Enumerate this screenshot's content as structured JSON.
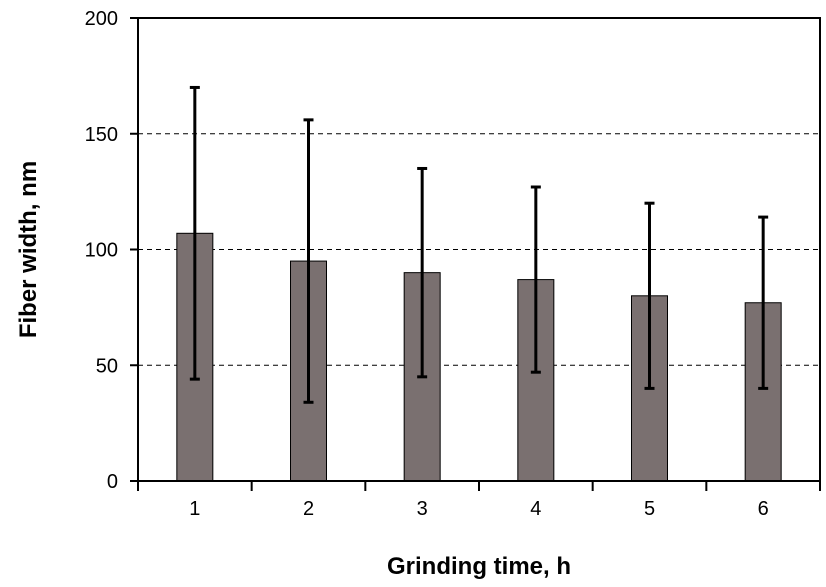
{
  "chart_data": {
    "type": "bar",
    "title": "",
    "xlabel": "Grinding time, h",
    "ylabel": "Fiber width, nm",
    "categories": [
      "1",
      "2",
      "3",
      "4",
      "5",
      "6"
    ],
    "values": [
      107,
      95,
      90,
      87,
      80,
      77
    ],
    "error_upper": [
      170,
      156,
      135,
      127,
      120,
      114
    ],
    "error_lower": [
      44,
      34,
      45,
      47,
      40,
      40
    ],
    "ylim": [
      0,
      200
    ],
    "yticks": [
      0,
      50,
      100,
      150,
      200
    ],
    "ytick_labels": [
      "0",
      "50",
      "100",
      "150",
      "200"
    ],
    "grid": true,
    "legend": "none",
    "colors": {
      "bar_fill": "#7a7070",
      "bar_stroke": "#000000",
      "error_bar": "#000000",
      "grid": "#000000"
    }
  }
}
